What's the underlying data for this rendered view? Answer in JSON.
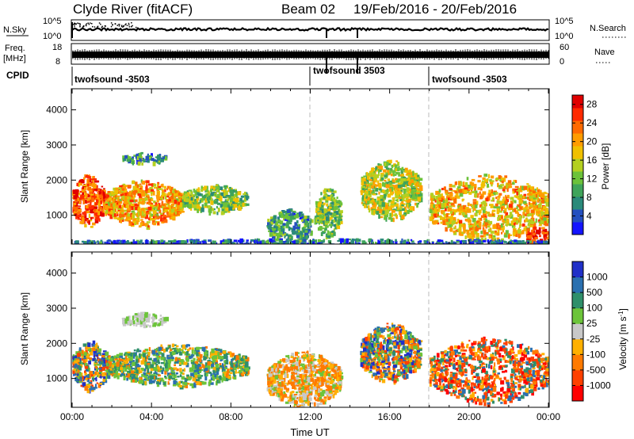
{
  "header": {
    "station": "Clyde River (fitACF)",
    "beam": "Beam 02",
    "dates": "19/Feb/2016 - 20/Feb/2016"
  },
  "panels": {
    "nsky": {
      "label": "N.Sky",
      "right_label": "N.Search",
      "left_ticks": [
        "10^5",
        "10^0"
      ],
      "right_ticks": [
        "10^5",
        "10^0"
      ]
    },
    "freq": {
      "label_line1": "Freq.",
      "label_line2": "[MHz]",
      "left_ticks": [
        "18",
        "8"
      ],
      "right_ticks": [
        "60",
        "0"
      ],
      "right_label": "Nave"
    },
    "cpid": {
      "label": "CPID",
      "segments": [
        {
          "label": "twofsound -3503",
          "start_hour": 0
        },
        {
          "label": "twofsound 3503",
          "start_hour": 12
        },
        {
          "label": "twofsound -3503",
          "start_hour": 18
        }
      ]
    }
  },
  "chart_data": [
    {
      "type": "heatmap",
      "ylabel": "Slant Range [km]",
      "xlabel": "",
      "xlim": [
        0,
        24
      ],
      "ylim": [
        180,
        4600
      ],
      "yticks": [
        "1000",
        "2000",
        "3000",
        "4000"
      ],
      "colorbar": {
        "label": "Power [dB]",
        "ticks": [
          "4",
          "8",
          "12",
          "16",
          "20",
          "24",
          "28"
        ],
        "range": [
          0,
          30
        ],
        "colors": [
          "#1414ff",
          "#2450c0",
          "#2a8a7a",
          "#3fa45a",
          "#6cc23a",
          "#b4d020",
          "#f0c000",
          "#ff9c00",
          "#ff6a00",
          "#ff2a00",
          "#e00000"
        ]
      },
      "clusters": [
        {
          "x": [
            0.0,
            1.6
          ],
          "y": [
            650,
            2200
          ],
          "value": 25
        },
        {
          "x": [
            1.6,
            5.5
          ],
          "y": [
            700,
            2050
          ],
          "value": 20
        },
        {
          "x": [
            5.5,
            8.8
          ],
          "y": [
            1100,
            1900
          ],
          "value": 12
        },
        {
          "x": [
            2.5,
            4.7
          ],
          "y": [
            2500,
            2800
          ],
          "value": 8
        },
        {
          "x": [
            9.8,
            12.0
          ],
          "y": [
            200,
            1200
          ],
          "value": 8
        },
        {
          "x": [
            12.2,
            13.5
          ],
          "y": [
            400,
            1800
          ],
          "value": 12
        },
        {
          "x": [
            14.5,
            17.5
          ],
          "y": [
            900,
            2600
          ],
          "value": 15
        },
        {
          "x": [
            18.0,
            24.0
          ],
          "y": [
            300,
            2200
          ],
          "value": 19
        },
        {
          "x": [
            22.8,
            24.0
          ],
          "y": [
            180,
            700
          ],
          "value": 27
        },
        {
          "x": [
            0.0,
            24.0
          ],
          "y": [
            180,
            350
          ],
          "value": 5
        }
      ]
    },
    {
      "type": "heatmap",
      "ylabel": "Slant Range [km]",
      "xlabel": "Time UT",
      "xlim": [
        0,
        24
      ],
      "ylim": [
        180,
        4600
      ],
      "yticks": [
        "1000",
        "2000",
        "3000",
        "4000"
      ],
      "xticks": [
        "00:00",
        "04:00",
        "08:00",
        "12:00",
        "16:00",
        "20:00",
        "00:00"
      ],
      "colorbar": {
        "label": "Velocity [m s-1]",
        "ticks": [
          "1000",
          "500",
          "100",
          "25",
          "-25",
          "-100",
          "-500",
          "-1000"
        ],
        "colors": [
          "#2030c8",
          "#2a70b0",
          "#2f8f6a",
          "#6cc43a",
          "#c8c8c8",
          "#ffb000",
          "#ff7a00",
          "#ff4000",
          "#ff0000"
        ]
      },
      "clusters": [
        {
          "x": [
            0.0,
            1.8
          ],
          "y": [
            650,
            2100
          ],
          "value": "mixed"
        },
        {
          "x": [
            1.8,
            8.8
          ],
          "y": [
            800,
            2000
          ],
          "value": "positive-low"
        },
        {
          "x": [
            2.5,
            4.7
          ],
          "y": [
            2500,
            2900
          ],
          "value": "near-zero"
        },
        {
          "x": [
            9.8,
            13.5
          ],
          "y": [
            200,
            1800
          ],
          "value": "negative-low"
        },
        {
          "x": [
            14.5,
            17.5
          ],
          "y": [
            900,
            2600
          ],
          "value": "mixed"
        },
        {
          "x": [
            18.0,
            24.0
          ],
          "y": [
            300,
            2200
          ],
          "value": "negative-high"
        }
      ]
    }
  ]
}
